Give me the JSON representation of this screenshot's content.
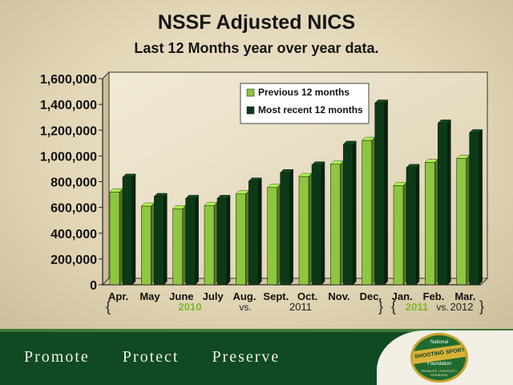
{
  "slide": {
    "title": "NSSF Adjusted NICS",
    "subtitle": "Last 12 Months year over year data."
  },
  "chart_data": {
    "type": "bar",
    "categories": [
      "Apr.",
      "May",
      "June",
      "July",
      "Aug.",
      "Sept.",
      "Oct.",
      "Nov.",
      "Dec.",
      "Jan.",
      "Feb.",
      "Mar."
    ],
    "series": [
      {
        "name": "Previous 12 months",
        "color": "#8dc63f",
        "values": [
          720000,
          610000,
          590000,
          615000,
          705000,
          755000,
          840000,
          935000,
          1120000,
          770000,
          950000,
          980000
        ]
      },
      {
        "name": "Most recent 12 months",
        "color": "#0c3a17",
        "values": [
          835000,
          685000,
          670000,
          670000,
          805000,
          870000,
          930000,
          1090000,
          1410000,
          910000,
          1255000,
          1180000
        ]
      }
    ],
    "y_ticks": [
      "0",
      "200,000",
      "400,000",
      "600,000",
      "800,000",
      "1,000,000",
      "1,200,000",
      "1,400,000",
      "1,600,000"
    ],
    "ylim": [
      0,
      1600000
    ],
    "legend_position": "top-right",
    "grid": false,
    "period_notes": [
      {
        "left_brace": "{",
        "right_brace": "}",
        "year1": "2010",
        "vs": "vs.",
        "year2": "2011"
      },
      {
        "left_brace": "{",
        "right_brace": "}",
        "year1": "2011",
        "vs": "vs.",
        "year2": "2012"
      }
    ]
  },
  "footer": {
    "taglines": [
      "Promote",
      "Protect",
      "Preserve"
    ],
    "logo": {
      "top": "National",
      "name": "SHOOTING SPORTS",
      "bottom": "Foundation",
      "motto": "PROMOTE • PROTECT • PRESERVE"
    }
  }
}
